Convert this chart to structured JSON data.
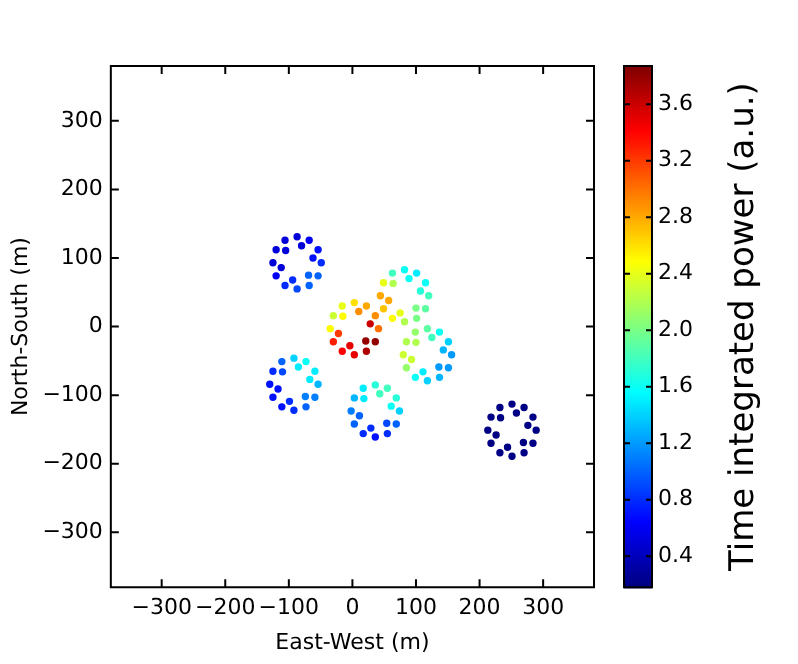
{
  "chart_data": {
    "type": "scatter",
    "xlabel": "East-West (m)",
    "ylabel": "North-South (m)",
    "clabel": "Time integrated power (a.u.)",
    "xlim": [
      -380,
      380
    ],
    "ylim": [
      -380,
      380
    ],
    "xticks": [
      -300,
      -200,
      -100,
      0,
      100,
      200,
      300
    ],
    "yticks": [
      -300,
      -200,
      -100,
      0,
      100,
      200,
      300
    ],
    "clim": [
      0.18,
      3.87
    ],
    "cticks": [
      0.4,
      0.8,
      1.2,
      1.6,
      {
        "value": 2,
        "label": "2.0"
      },
      2.4,
      2.8,
      3.2,
      3.6
    ],
    "grid": false,
    "legend": false,
    "marker": "circle",
    "series": [
      {
        "x": [
          -49,
          -54,
          -68,
          -87,
          -106,
          -120,
          -125,
          -120,
          -106,
          -87,
          -68,
          -54,
          -62,
          -80,
          -105,
          -112,
          -94,
          -69
        ],
        "values": [
          93,
          112,
          126,
          131,
          126,
          112,
          93,
          74,
          60,
          55,
          60,
          74,
          100,
          118,
          111,
          86,
          68,
          75
        ],
        "cvalues": [
          0.8,
          0.7,
          0.6,
          0.5,
          0.5,
          0.5,
          0.5,
          0.6,
          0.8,
          0.9,
          1.0,
          1.0,
          0.7,
          0.5,
          0.5,
          0.5,
          0.8,
          1.0
        ],
        "colors": [
          "#002cff",
          "#0010ff",
          "#0000f4",
          "#0000d8",
          "#0000d8",
          "#0000d8",
          "#0000d8",
          "#0000f4",
          "#002cff",
          "#0047ff",
          "#0063ff",
          "#0063ff",
          "#0010ff",
          "#0000d8",
          "#0000d8",
          "#0000d8",
          "#002cff",
          "#0063ff"
        ]
      },
      {
        "x": [
          41,
          36,
          22,
          3,
          -16,
          -30,
          -35,
          -30,
          -16,
          3,
          22,
          36,
          28,
          10,
          -15,
          -22,
          -4,
          21
        ],
        "values": [
          -3,
          16,
          30,
          35,
          30,
          16,
          -3,
          -22,
          -36,
          -41,
          -36,
          -22,
          4,
          22,
          15,
          -10,
          -28,
          -21
        ],
        "cvalues": [
          3.0,
          2.9,
          2.8,
          2.6,
          2.4,
          2.3,
          2.5,
          3.3,
          3.4,
          3.5,
          3.7,
          3.8,
          3.6,
          2.9,
          2.5,
          3.2,
          3.5,
          3.8
        ],
        "colors": [
          "#ff7100",
          "#ff8d00",
          "#ffa800",
          "#ffe000",
          "#e7ff18",
          "#cbff34",
          "#fffb00",
          "#ff1e00",
          "#ff0200",
          "#e60000",
          "#ae0000",
          "#930000",
          "#ca0000",
          "#ff8d00",
          "#fffb00",
          "#ff3a00",
          "#e60000",
          "#930000"
        ]
      },
      {
        "x": [
          120,
          115,
          101,
          82,
          63,
          49,
          44,
          49,
          63,
          82,
          101,
          115,
          107,
          89,
          64,
          57,
          75,
          100
        ],
        "values": [
          45,
          64,
          78,
          83,
          78,
          64,
          45,
          26,
          12,
          7,
          12,
          26,
          52,
          70,
          63,
          38,
          20,
          27
        ],
        "cvalues": [
          1.8,
          1.6,
          1.5,
          1.6,
          1.8,
          2.4,
          2.8,
          2.7,
          2.5,
          2.2,
          2.0,
          1.9,
          1.7,
          1.6,
          2.2,
          2.8,
          2.4,
          2.0
        ],
        "colors": [
          "#41ffbe",
          "#0afff5",
          "#00edff",
          "#0afff5",
          "#41ffbe",
          "#e7ff18",
          "#ffa800",
          "#ffc400",
          "#fffb00",
          "#b0ff4f",
          "#79ff86",
          "#5dffa2",
          "#26ffd9",
          "#0afff5",
          "#b0ff4f",
          "#ffa800",
          "#e7ff18",
          "#79ff86"
        ]
      },
      {
        "x": [
          156,
          151,
          137,
          118,
          99,
          85,
          80,
          85,
          99,
          118,
          137,
          151,
          143,
          125,
          100,
          93,
          111,
          136
        ],
        "values": [
          -41,
          -22,
          -8,
          -3,
          -8,
          -22,
          -41,
          -60,
          -74,
          -79,
          -74,
          -60,
          -34,
          -16,
          -23,
          -48,
          -66,
          -59
        ],
        "cvalues": [
          1.2,
          1.4,
          1.6,
          1.9,
          2.1,
          2.2,
          2.3,
          2.1,
          1.6,
          1.4,
          1.3,
          1.2,
          1.3,
          1.8,
          2.2,
          2.3,
          1.5,
          1.2
        ],
        "colors": [
          "#009aff",
          "#00d2ff",
          "#0afff5",
          "#5dffa2",
          "#94ff6b",
          "#b0ff4f",
          "#cbff34",
          "#94ff6b",
          "#0afff5",
          "#00d2ff",
          "#00b6ff",
          "#009aff",
          "#00b6ff",
          "#41ffbe",
          "#b0ff4f",
          "#cbff34",
          "#00edff",
          "#009aff"
        ]
      },
      {
        "x": [
          -54,
          -59,
          -73,
          -92,
          -111,
          -125,
          -130,
          -125,
          -111,
          -92,
          -73,
          -59,
          -67,
          -85,
          -110,
          -117,
          -99,
          -74
        ],
        "values": [
          -84,
          -65,
          -51,
          -46,
          -51,
          -65,
          -84,
          -103,
          -117,
          -122,
          -117,
          -103,
          -77,
          -59,
          -66,
          -91,
          -109,
          -102
        ],
        "cvalues": [
          1.3,
          1.5,
          1.6,
          1.4,
          1.0,
          0.8,
          0.7,
          0.7,
          0.7,
          0.8,
          1.0,
          1.1,
          1.5,
          1.5,
          0.9,
          0.7,
          0.8,
          1.1
        ],
        "colors": [
          "#00b6ff",
          "#00edff",
          "#0afff5",
          "#00d2ff",
          "#0063ff",
          "#002cff",
          "#0010ff",
          "#0010ff",
          "#0010ff",
          "#002cff",
          "#0063ff",
          "#007fff",
          "#00edff",
          "#00edff",
          "#0047ff",
          "#0010ff",
          "#002cff",
          "#007fff"
        ]
      },
      {
        "x": [
          74,
          69,
          55,
          36,
          17,
          3,
          -2,
          3,
          17,
          36,
          55,
          69,
          61,
          43,
          18,
          11,
          29,
          54
        ],
        "values": [
          -123,
          -104,
          -90,
          -85,
          -90,
          -104,
          -123,
          -142,
          -156,
          -161,
          -156,
          -142,
          -116,
          -98,
          -105,
          -130,
          -148,
          -141
        ],
        "cvalues": [
          1.4,
          1.7,
          1.8,
          1.7,
          1.5,
          1.3,
          1.1,
          1.0,
          0.8,
          0.7,
          0.8,
          1.0,
          1.6,
          1.8,
          1.5,
          1.0,
          0.8,
          0.9
        ],
        "colors": [
          "#00d2ff",
          "#26ffd9",
          "#41ffbe",
          "#26ffd9",
          "#00edff",
          "#00b6ff",
          "#007fff",
          "#0063ff",
          "#002cff",
          "#0010ff",
          "#002cff",
          "#0063ff",
          "#0afff5",
          "#41ffbe",
          "#00edff",
          "#0063ff",
          "#002cff",
          "#0047ff"
        ]
      },
      {
        "x": [
          289,
          284,
          270,
          251,
          232,
          218,
          213,
          218,
          232,
          251,
          270,
          284,
          276,
          258,
          233,
          226,
          244,
          269
        ],
        "values": [
          -151,
          -132,
          -118,
          -113,
          -118,
          -132,
          -151,
          -170,
          -184,
          -189,
          -184,
          -170,
          -144,
          -126,
          -133,
          -158,
          -176,
          -169
        ],
        "cvalues": [
          0.2,
          0.2,
          0.2,
          0.2,
          0.2,
          0.2,
          0.2,
          0.2,
          0.2,
          0.2,
          0.2,
          0.2,
          0.2,
          0.2,
          0.2,
          0.2,
          0.2,
          0.2
        ],
        "color": "#000085"
      }
    ]
  }
}
